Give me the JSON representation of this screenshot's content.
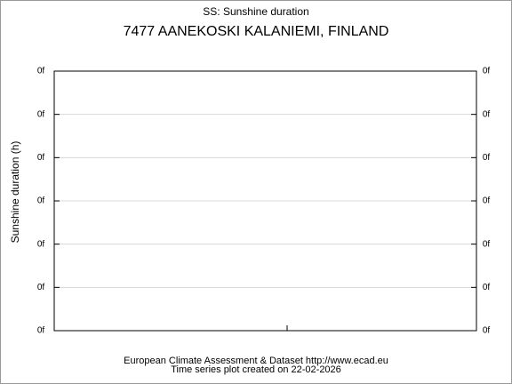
{
  "chart_data": {
    "type": "line",
    "title": "SS: Sunshine duration",
    "subtitle": "7477 AANEKOSKI KALANIEMI, FINLAND",
    "ylabel": "Sunshine duration (h)",
    "series": [],
    "ylim": [
      0,
      6
    ],
    "yticks": [
      {
        "value": 0,
        "label": "0f"
      },
      {
        "value": 1,
        "label": "0f"
      },
      {
        "value": 2,
        "label": "0f"
      },
      {
        "value": 3,
        "label": "0f"
      },
      {
        "value": 4,
        "label": "0f"
      },
      {
        "value": 5,
        "label": "0f"
      },
      {
        "value": 6,
        "label": "0f"
      }
    ],
    "y2lim": [
      0,
      6
    ],
    "y2ticks": [
      {
        "value": 0,
        "label": "0f"
      },
      {
        "value": 1,
        "label": "0f"
      },
      {
        "value": 2,
        "label": "0f"
      },
      {
        "value": 3,
        "label": "0f"
      },
      {
        "value": 4,
        "label": "0f"
      },
      {
        "value": 5,
        "label": "0f"
      },
      {
        "value": 6,
        "label": "0f"
      }
    ],
    "grid": true,
    "footer": [
      "European Climate Assessment & Dataset  http://www.ecad.eu",
      "Time series plot created on 22-02-2026"
    ]
  }
}
